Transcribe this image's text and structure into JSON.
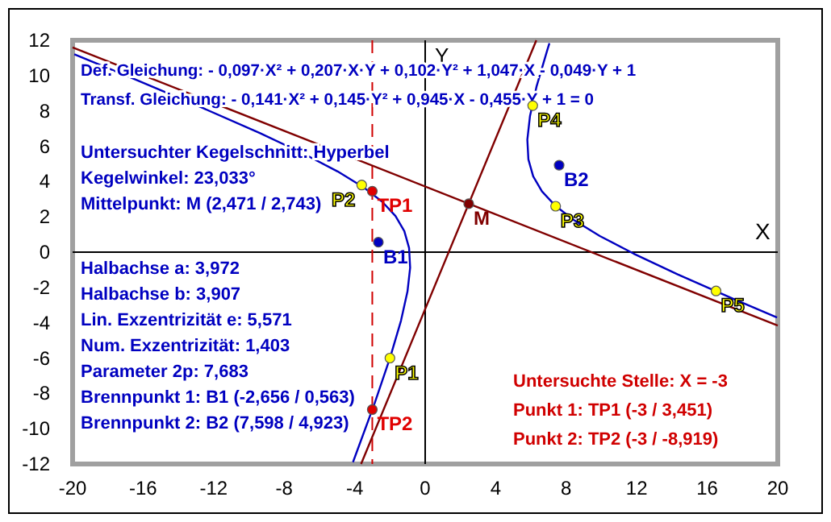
{
  "chart_data": {
    "type": "line",
    "xlim": [
      -20,
      20
    ],
    "ylim": [
      -12,
      12
    ],
    "xticks": [
      -20,
      -16,
      -12,
      -8,
      -4,
      0,
      4,
      8,
      12,
      16,
      20
    ],
    "yticks": [
      -12,
      -10,
      -8,
      -6,
      -4,
      -2,
      0,
      2,
      4,
      6,
      8,
      10,
      12
    ],
    "grid": false,
    "ref_lines": [
      {
        "axis": "x",
        "value": 0,
        "label": "Y",
        "color": "#000000",
        "line_style": "solid"
      },
      {
        "axis": "y",
        "value": 0,
        "label": "X",
        "color": "#000000",
        "line_style": "solid"
      },
      {
        "axis": "x",
        "value": -3,
        "color": "#d00000",
        "line_style": "dashed"
      }
    ],
    "annotations": [
      "Def. Gleichung: - 0,097·X² + 0,207·X·Y + 0,102·Y² + 1,047·X - 0,049·Y + 1",
      "Transf. Gleichung: - 0,141·X² + 0,145·Y² + 0,945·X - 0,455·Y + 1 = 0",
      "Untersuchte Stelle: X = -3",
      "Punkt 1: TP1 (-3 / 3,451)",
      "Punkt 2: TP2 (-3 / -8,919)",
      "Untersuchter Kegelschnitt: Hyperbel",
      "Kegelwinkel: 23,033°",
      "Mittelpunkt: M (2,471 / 2,743)",
      "Halbachse a: 3,972",
      "Halbachse b: 3,907",
      "Lin. Exzentrizität e: 5,571",
      "Num. Exzentrizität: 1,403",
      "Parameter 2p: 7,683",
      "Brennpunkt 1: B1 (-2,656 / 0,563)",
      "Brennpunkt 2: B2 (7,598 / 4,923)"
    ],
    "series": [
      {
        "color": "#0000c0",
        "x": [
          7.047,
          6.924,
          6.314,
          5.946,
          5.795,
          5.855,
          6.126,
          6.627,
          7.389,
          8.46,
          9.908,
          11.822,
          14.325,
          17.572,
          19.96
        ],
        "values": [
          11.835,
          11.438,
          9.367,
          7.712,
          6.369,
          5.254,
          4.297,
          3.438,
          2.621,
          1.798,
          0.915,
          -0.082,
          -1.258,
          -2.685,
          -3.698
        ]
      },
      {
        "color": "#0000c0",
        "x": [
          -19.905,
          -16.826,
          -12.63,
          -9.383,
          -6.88,
          -4.966,
          -3.518,
          -2.447,
          -1.685,
          -1.184,
          -0.913,
          -0.853,
          -1.004,
          -1.372,
          -1.982,
          -2.871,
          -4.096
        ],
        "values": [
          11.209,
          9.939,
          8.171,
          6.744,
          5.568,
          4.571,
          3.688,
          2.865,
          2.048,
          1.189,
          0.232,
          -0.883,
          -2.226,
          -3.881,
          -5.952,
          -8.57,
          -11.897
        ]
      },
      {
        "color": "#800000",
        "x": [
          -3.636,
          6.306
        ],
        "values": [
          -12,
          12
        ]
      },
      {
        "color": "#800000",
        "x": [
          -20,
          20
        ],
        "values": [
          11.597,
          -4.163
        ]
      },
      {
        "type": "scatter",
        "marker": "circle",
        "name": "P1",
        "color": "#ffff00",
        "x": [
          -2
        ],
        "values": [
          -6
        ]
      },
      {
        "type": "scatter",
        "marker": "circle",
        "name": "P2",
        "color": "#ffff00",
        "x": [
          -3.6
        ],
        "values": [
          3.8
        ]
      },
      {
        "type": "scatter",
        "marker": "circle",
        "name": "P3",
        "color": "#ffff00",
        "x": [
          7.4
        ],
        "values": [
          2.6
        ]
      },
      {
        "type": "scatter",
        "marker": "circle",
        "name": "P4",
        "color": "#ffff00",
        "x": [
          6.1
        ],
        "values": [
          8.3
        ]
      },
      {
        "type": "scatter",
        "marker": "circle",
        "name": "P5",
        "color": "#ffff00",
        "x": [
          16.5
        ],
        "values": [
          -2.2
        ]
      },
      {
        "type": "scatter",
        "marker": "circle",
        "name": "M",
        "color": "#800000",
        "x": [
          2.471
        ],
        "values": [
          2.743
        ]
      },
      {
        "type": "scatter",
        "marker": "circle",
        "name": "B1",
        "color": "#0000c0",
        "x": [
          -2.656
        ],
        "values": [
          0.563
        ]
      },
      {
        "type": "scatter",
        "marker": "circle",
        "name": "B2",
        "color": "#0000c0",
        "x": [
          7.598
        ],
        "values": [
          4.923
        ]
      },
      {
        "type": "scatter",
        "marker": "circle",
        "name": "TP1",
        "color": "#e00000",
        "x": [
          -3
        ],
        "values": [
          3.451
        ]
      },
      {
        "type": "scatter",
        "marker": "circle",
        "name": "TP2",
        "color": "#e00000",
        "x": [
          -3
        ],
        "values": [
          -8.919
        ]
      }
    ]
  }
}
